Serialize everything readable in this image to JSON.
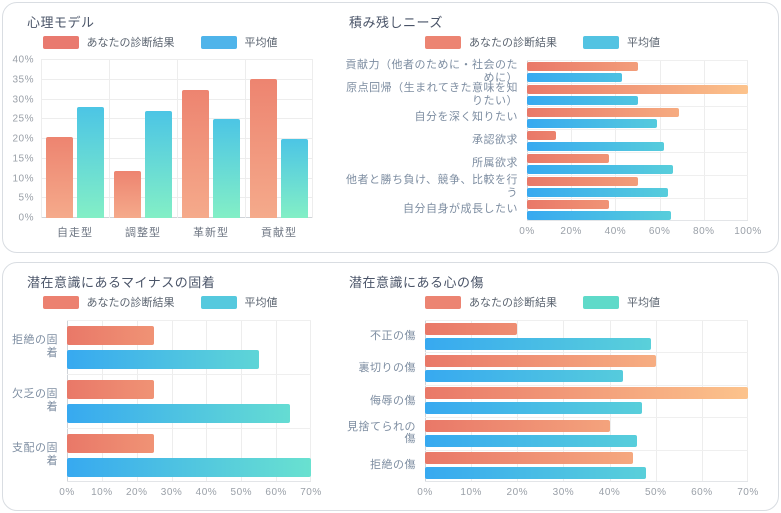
{
  "page": {
    "background": "#ffffff"
  },
  "palette": {
    "card_border": "#d9dde2",
    "title_color": "#4a5468",
    "category_label_color": "#7d8da1",
    "tick_label_color": "#9aa0a8",
    "legend_text_color": "#5b6470",
    "grid_color": "#ededed",
    "axis_line_color": "#cfd3d8"
  },
  "chart_data": [
    {
      "type": "bar",
      "orientation": "vertical",
      "title": "心理モデル",
      "categories": [
        "自走型",
        "調整型",
        "革新型",
        "貢献型"
      ],
      "series": [
        {
          "name": "あなたの診断結果",
          "values": [
            20.6,
            11.8,
            32.4,
            35.3
          ]
        },
        {
          "name": "平均値",
          "values": [
            28,
            27,
            25,
            20
          ]
        }
      ],
      "ylim": [
        0,
        40
      ],
      "y_ticks": [
        "0%",
        "5%",
        "10%",
        "15%",
        "20%",
        "25%",
        "30%",
        "35%",
        "40%"
      ],
      "grid": true,
      "legend_position": "top-center",
      "legend_colors": [
        "#E97A6F",
        "#4FB4EA"
      ],
      "bar_gradients": [
        [
          "#ED8470",
          "#F5AA8B"
        ],
        [
          "#4CC5E5",
          "#83EFC6"
        ]
      ]
    },
    {
      "type": "bar",
      "orientation": "horizontal",
      "title": "積み残しニーズ",
      "categories": [
        "貢献力（他者のために・社会のために）",
        "原点回帰（生まれてきた意味を知りたい）",
        "自分を深く知りたい",
        "承認欲求",
        "所属欲求",
        "他者と勝ち負け、競争、比較を行う",
        "自分自身が成長したい"
      ],
      "series": [
        {
          "name": "あなたの診断結果",
          "values": [
            50,
            100,
            69,
            13,
            37,
            50,
            37
          ]
        },
        {
          "name": "平均値",
          "values": [
            43,
            50,
            59,
            62,
            66,
            64,
            65
          ]
        }
      ],
      "xlim": [
        0,
        100
      ],
      "x_ticks": [
        "0%",
        "20%",
        "40%",
        "60%",
        "80%",
        "100%"
      ],
      "grid": true,
      "legend_position": "top-center",
      "legend_colors": [
        "#EC8472",
        "#53C3E2"
      ],
      "bar_gradients": [
        [
          "#E97868",
          "#FCC38C"
        ],
        [
          "#37A9F0",
          "#69E1D0"
        ]
      ]
    },
    {
      "type": "bar",
      "orientation": "horizontal",
      "title": "潜在意識にあるマイナスの固着",
      "categories": [
        "拒絶の固着",
        "欠乏の固着",
        "支配の固着"
      ],
      "series": [
        {
          "name": "あなたの診断結果",
          "values": [
            25,
            25,
            25
          ]
        },
        {
          "name": "平均値",
          "values": [
            55,
            64,
            70
          ]
        }
      ],
      "xlim": [
        0,
        70
      ],
      "x_ticks": [
        "0%",
        "10%",
        "20%",
        "30%",
        "40%",
        "50%",
        "60%",
        "70%"
      ],
      "grid": true,
      "legend_position": "top-center",
      "legend_colors": [
        "#EC8170",
        "#55C9DE"
      ],
      "bar_gradients": [
        [
          "#E97868",
          "#FCC38C"
        ],
        [
          "#37A9F0",
          "#69E1D0"
        ]
      ]
    },
    {
      "type": "bar",
      "orientation": "horizontal",
      "title": "潜在意識にある心の傷",
      "categories": [
        "不正の傷",
        "裏切りの傷",
        "侮辱の傷",
        "見捨てられの傷",
        "拒絶の傷"
      ],
      "series": [
        {
          "name": "あなたの診断結果",
          "values": [
            20,
            50,
            70,
            40,
            45
          ]
        },
        {
          "name": "平均値",
          "values": [
            49,
            43,
            47,
            46,
            48
          ]
        }
      ],
      "xlim": [
        0,
        70
      ],
      "x_ticks": [
        "0%",
        "10%",
        "20%",
        "30%",
        "40%",
        "50%",
        "60%",
        "70%"
      ],
      "grid": true,
      "legend_position": "top-center",
      "legend_colors": [
        "#EC8472",
        "#5FDAC9"
      ],
      "bar_gradients": [
        [
          "#E97868",
          "#FCC38C"
        ],
        [
          "#37A9F0",
          "#69E1D0"
        ]
      ]
    }
  ]
}
